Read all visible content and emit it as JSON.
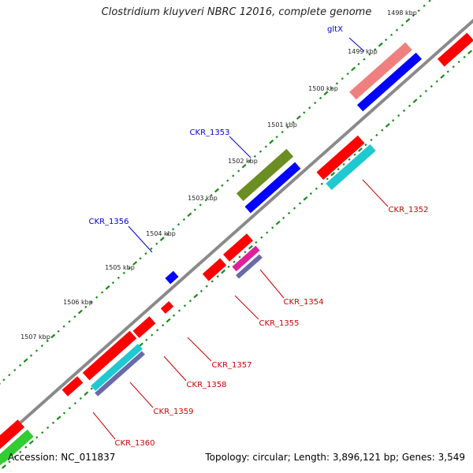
{
  "title": "Clostridium kluyveri NBRC 12016, complete genome",
  "footer": {
    "accession": "Accession: NC_011837",
    "summary": "Topology: circular; Length: 3,896,121 bp; Genes: 3,549"
  },
  "colors": {
    "backbone": "#888888",
    "tick": "#1a8a1a",
    "red": "#ff0000",
    "blue": "#0000ff",
    "pink": "#f08080",
    "olive": "#6b8e23",
    "cyan": "#20c8d0",
    "magenta": "#e0209a",
    "slate": "#6a6aa8",
    "green": "#33cc33",
    "label_red": "#cc0000",
    "label_blue": "#0000cc"
  },
  "ticks": [
    "1498 kbp",
    "1499 kbp",
    "1500 kbp",
    "1501 kbp",
    "1502 kbp",
    "1503 kbp",
    "1504 kbp",
    "1505 kbp",
    "1506 kbp",
    "1507 kbp"
  ],
  "genes": [
    {
      "name": "gltX",
      "color": "label_blue"
    },
    {
      "name": "CKR_1353",
      "color": "label_blue"
    },
    {
      "name": "CKR_1356",
      "color": "label_blue"
    },
    {
      "name": "CKR_1352",
      "color": "label_red"
    },
    {
      "name": "CKR_1354",
      "color": "label_red"
    },
    {
      "name": "CKR_1355",
      "color": "label_red"
    },
    {
      "name": "CKR_1357",
      "color": "label_red"
    },
    {
      "name": "CKR_1358",
      "color": "label_red"
    },
    {
      "name": "CKR_1359",
      "color": "label_red"
    },
    {
      "name": "CKR_1360",
      "color": "label_red"
    }
  ]
}
